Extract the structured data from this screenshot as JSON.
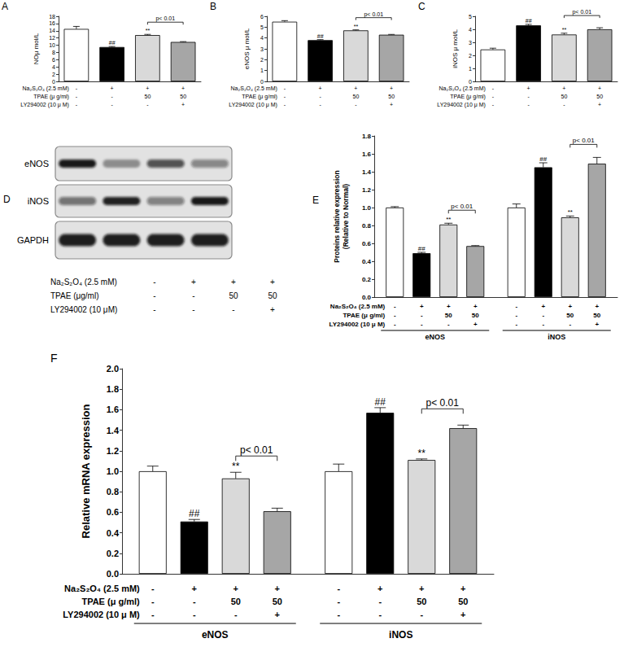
{
  "chart_data": [
    {
      "type": "bar",
      "title": "A",
      "ylabel": "NOμ mol/L",
      "ylim": [
        0,
        18
      ],
      "yticks": [
        0,
        2,
        4,
        6,
        8,
        10,
        12,
        14,
        16,
        18
      ],
      "grid": false,
      "tick_labels": "y",
      "values": [
        14.5,
        9.5,
        12.8,
        10.9
      ],
      "errors": [
        0.7,
        0.15,
        0.2,
        0.1
      ],
      "colors": [
        "#ffffff",
        "#000000",
        "#d9d9d9",
        "#a6a6a6"
      ],
      "marks": [
        null,
        "##",
        "**",
        null
      ],
      "bracket": {
        "between": [
          2,
          3
        ],
        "label": "p< 0.01"
      },
      "treatments": [
        {
          "label": "Na₂S₂O₄ (2.5 mM)",
          "values": [
            "-",
            "+",
            "+",
            "+"
          ]
        },
        {
          "label": "TPAE (μ g/ml)",
          "values": [
            "-",
            "-",
            "50",
            "50"
          ]
        },
        {
          "label": "LY294002 (10 μ M)",
          "values": [
            "-",
            "-",
            "-",
            "+"
          ]
        }
      ]
    },
    {
      "type": "bar",
      "title": "B",
      "ylabel": "eNOS μ mol/L",
      "ylim": [
        0,
        6
      ],
      "yticks": [
        0,
        1,
        2,
        3,
        4,
        5,
        6
      ],
      "grid": false,
      "tick_labels": "y",
      "values": [
        5.5,
        3.8,
        4.7,
        4.3
      ],
      "errors": [
        0.1,
        0.05,
        0.05,
        0.03
      ],
      "colors": [
        "#ffffff",
        "#000000",
        "#d9d9d9",
        "#a6a6a6"
      ],
      "marks": [
        null,
        "##",
        "**",
        null
      ],
      "bracket": {
        "between": [
          2,
          3
        ],
        "label": "p< 0.01"
      },
      "treatments": [
        {
          "label": "Na₂S₂O₄ (2.5 mM)",
          "values": [
            "-",
            "+",
            "+",
            "+"
          ]
        },
        {
          "label": "TPAE (μ g/ml)",
          "values": [
            "-",
            "-",
            "50",
            "50"
          ]
        },
        {
          "label": "LY294002 (10 μ M)",
          "values": [
            "-",
            "-",
            "-",
            "+"
          ]
        }
      ]
    },
    {
      "type": "bar",
      "title": "C",
      "ylabel": "iNOS μ mol/L",
      "ylim": [
        0,
        5
      ],
      "yticks": [
        0,
        1,
        2,
        3,
        4,
        5
      ],
      "grid": false,
      "tick_labels": "y",
      "values": [
        2.45,
        4.3,
        3.6,
        4.0
      ],
      "errors": [
        0.1,
        0.08,
        0.1,
        0.12
      ],
      "colors": [
        "#ffffff",
        "#000000",
        "#d9d9d9",
        "#a6a6a6"
      ],
      "marks": [
        null,
        "##",
        "**",
        null
      ],
      "bracket": {
        "between": [
          2,
          3
        ],
        "label": "p< 0.01"
      },
      "treatments": [
        {
          "label": "Na₂S₂O₄ (2.5 mM)",
          "values": [
            "-",
            "+",
            "+",
            "+"
          ]
        },
        {
          "label": "TPAE (μ g/ml)",
          "values": [
            "-",
            "-",
            "50",
            "50"
          ]
        },
        {
          "label": "LY294002 (10 μ M)",
          "values": [
            "-",
            "-",
            "-",
            "+"
          ]
        }
      ]
    },
    {
      "type": "blot",
      "title": "D",
      "rows": [
        "eNOS",
        "iNOS",
        "GAPDH"
      ],
      "treatments": [
        {
          "label": "Na₂S₂O₄ (2.5 mM)",
          "values": [
            "-",
            "+",
            "+",
            "+"
          ]
        },
        {
          "label": "TPAE (μg/ml)",
          "values": [
            "-",
            "-",
            "50",
            "50"
          ]
        },
        {
          "label": "LY294002 (10 μM)",
          "values": [
            "-",
            "-",
            "-",
            "+"
          ]
        }
      ]
    },
    {
      "type": "bar",
      "title": "E",
      "ylabel": "Proteins relative expression\n(Relative to Normal)",
      "ylim": [
        0,
        1.8
      ],
      "yticks": [
        {
          "value": 0,
          "label": "0.0"
        },
        0.2,
        0.4,
        0.6,
        0.8,
        {
          "value": 1,
          "label": "1.0"
        },
        1.2,
        1.4,
        1.6,
        1.8
      ],
      "grid": false,
      "tick_labels": "y",
      "categories": [
        "eNOS",
        "iNOS"
      ],
      "series": [
        {
          "color": "#ffffff",
          "values": [
            1.0,
            1.0
          ],
          "errors": [
            0.01,
            0.04
          ],
          "marks": [
            null,
            null
          ]
        },
        {
          "color": "#000000",
          "values": [
            0.49,
            1.45
          ],
          "errors": [
            0.01,
            0.05
          ],
          "marks": [
            "##",
            "##"
          ]
        },
        {
          "color": "#d9d9d9",
          "values": [
            0.81,
            0.89
          ],
          "errors": [
            0.015,
            0.015
          ],
          "marks": [
            "**",
            "**"
          ]
        },
        {
          "color": "#a6a6a6",
          "values": [
            0.57,
            1.49
          ],
          "errors": [
            0.005,
            0.07
          ],
          "marks": [
            null,
            null
          ]
        }
      ],
      "bracket": {
        "between": [
          2,
          3
        ],
        "label": "p< 0.01"
      },
      "treatments": [
        {
          "label": "Na₂S₂O₄ (2.5 mM)",
          "values": [
            "-",
            "+",
            "+",
            "+"
          ]
        },
        {
          "label": "TPAE (μ g/ml)",
          "values": [
            "-",
            "-",
            "50",
            "50"
          ]
        },
        {
          "label": "LY294002 (10 μ M)",
          "values": [
            "-",
            "-",
            "-",
            "+"
          ]
        }
      ]
    },
    {
      "type": "bar",
      "title": "F",
      "ylabel": "Relative mRNA expression",
      "ylim": [
        0,
        2
      ],
      "yticks": [
        {
          "value": 0,
          "label": "0.0"
        },
        0.2,
        0.4,
        0.6,
        0.8,
        {
          "value": 1,
          "label": "1.0"
        },
        1.2,
        1.4,
        1.6,
        1.8,
        {
          "value": 2,
          "label": "2.0"
        }
      ],
      "grid": false,
      "tick_labels": "y",
      "categories": [
        "eNOS",
        "iNOS"
      ],
      "series": [
        {
          "color": "#ffffff",
          "values": [
            1.0,
            1.0
          ],
          "errors": [
            0.05,
            0.07
          ],
          "marks": [
            null,
            null
          ]
        },
        {
          "color": "#000000",
          "values": [
            0.51,
            1.57
          ],
          "errors": [
            0.02,
            0.05
          ],
          "marks": [
            "##",
            "##"
          ]
        },
        {
          "color": "#d9d9d9",
          "values": [
            0.93,
            1.11
          ],
          "errors": [
            0.06,
            0.01
          ],
          "marks": [
            "**",
            "**"
          ]
        },
        {
          "color": "#a6a6a6",
          "values": [
            0.61,
            1.42
          ],
          "errors": [
            0.03,
            0.03
          ],
          "marks": [
            null,
            null
          ]
        }
      ],
      "bracket": {
        "between": [
          2,
          3
        ],
        "label": "p< 0.01"
      },
      "treatments": [
        {
          "label": "Na₂S₂O₄ (2.5 mM)",
          "values": [
            "-",
            "+",
            "+",
            "+"
          ]
        },
        {
          "label": "TPAE (μ g/ml)",
          "values": [
            "-",
            "-",
            "50",
            "50"
          ]
        },
        {
          "label": "LY294002 (10 μ M)",
          "values": [
            "-",
            "-",
            "-",
            "+"
          ]
        }
      ]
    }
  ]
}
